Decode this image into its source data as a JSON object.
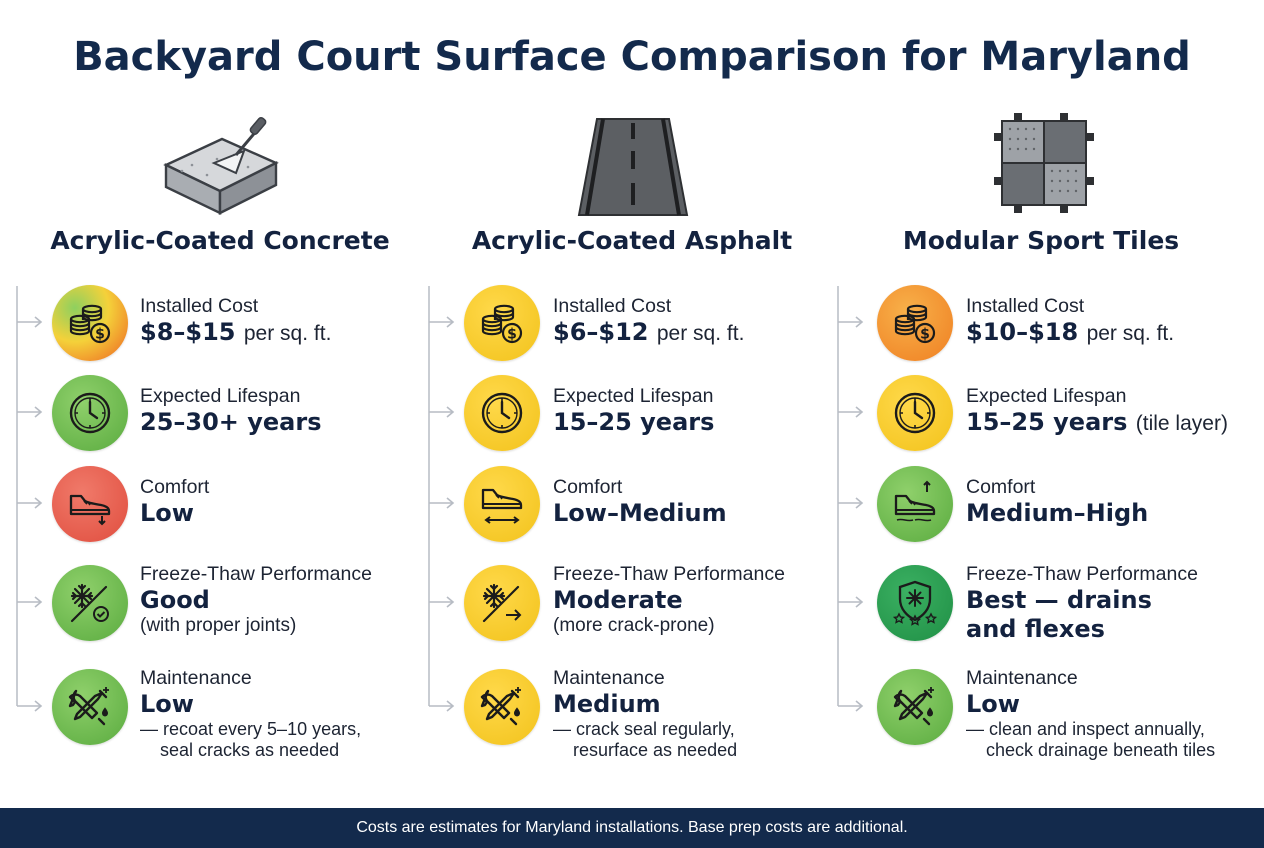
{
  "title": "Backyard Court Surface Comparison for Maryland",
  "footer": "Costs are estimates for Maryland installations. Base prep costs are additional.",
  "columns": [
    {
      "name": "Acrylic-Coated Concrete",
      "illustration": "concrete-slab-trowel",
      "metrics": [
        {
          "label": "Installed Cost",
          "value": "$8–$15",
          "unit": "per sq. ft.",
          "icon": "coins-dollar-icon",
          "color": "gradient"
        },
        {
          "label": "Expected Lifespan",
          "value": "25–30+ years",
          "icon": "clock-icon",
          "color": "#5aab3f"
        },
        {
          "label": "Comfort",
          "value": "Low",
          "icon": "shoe-down-icon",
          "color": "#e04d3e"
        },
        {
          "label": "Freeze-Thaw Performance",
          "value": "Good",
          "note": "(with proper joints)",
          "icon": "snowflake-check-icon",
          "color": "#5aab3f"
        },
        {
          "label": "Maintenance",
          "value": "Low",
          "note1": "— recoat every 5–10 years,",
          "note2": "seal cracks as needed",
          "icon": "tools-icon",
          "color": "#5aab3f"
        }
      ]
    },
    {
      "name": "Acrylic-Coated Asphalt",
      "illustration": "asphalt-road",
      "metrics": [
        {
          "label": "Installed Cost",
          "value": "$6–$12",
          "unit": "per sq. ft.",
          "icon": "coins-dollar-icon",
          "color": "#f2c21b"
        },
        {
          "label": "Expected Lifespan",
          "value": "15–25 years",
          "icon": "clock-icon",
          "color": "#f2c21b"
        },
        {
          "label": "Comfort",
          "value": "Low–Medium",
          "icon": "shoe-sideways-icon",
          "color": "#f2c21b"
        },
        {
          "label": "Freeze-Thaw Performance",
          "value": "Moderate",
          "note": "(more crack-prone)",
          "icon": "snowflake-arrow-icon",
          "color": "#f2c21b"
        },
        {
          "label": "Maintenance",
          "value": "Medium",
          "note1": "— crack seal regularly,",
          "note2": "resurface as needed",
          "icon": "tools-icon",
          "color": "#f2c21b"
        }
      ]
    },
    {
      "name": "Modular Sport Tiles",
      "illustration": "interlocking-tiles",
      "metrics": [
        {
          "label": "Installed Cost",
          "value": "$10–$18",
          "unit": "per sq. ft.",
          "icon": "coins-dollar-icon",
          "color": "#ef7f22"
        },
        {
          "label": "Expected Lifespan",
          "value": "15–25 years",
          "unit": "(tile layer)",
          "icon": "clock-icon",
          "color": "#f2c21b"
        },
        {
          "label": "Comfort",
          "value": "Medium–High",
          "icon": "shoe-up-icon",
          "color": "#5aab3f"
        },
        {
          "label": "Freeze-Thaw Performance",
          "value": "Best — drains",
          "value2": "and flexes",
          "icon": "snowflake-shield-icon",
          "color": "#5aab3f"
        },
        {
          "label": "Maintenance",
          "value": "Low",
          "note1": "— clean and inspect annually,",
          "note2": "check drainage beneath tiles",
          "icon": "tools-icon",
          "color": "#5aab3f"
        }
      ]
    }
  ]
}
